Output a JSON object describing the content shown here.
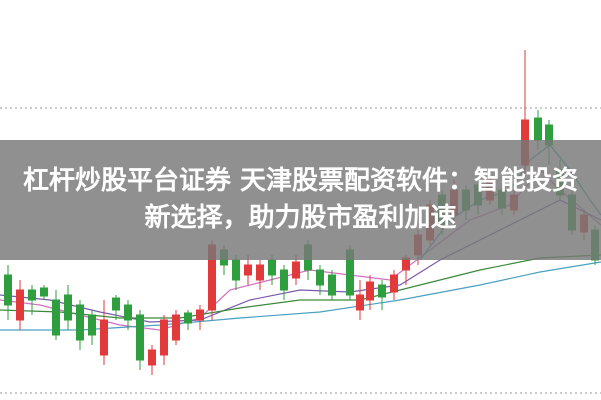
{
  "header": {
    "title": "杠杆炒股平台证券 天津股票配资软件：智能投资新选择，助力股市盈利加速"
  }
}
